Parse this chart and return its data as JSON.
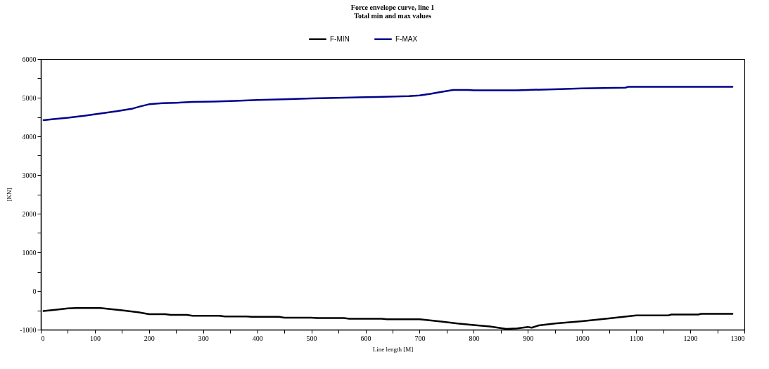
{
  "chart_data": {
    "type": "line",
    "title": "Force envelope curve, line   1",
    "subtitle": "Total min and max values",
    "xlabel": "Line length [M]",
    "ylabel": "[KN]",
    "xlim": [
      0,
      1300
    ],
    "ylim": [
      -1000,
      6000
    ],
    "xticks": [
      0,
      {
        "value": 50,
        "label": null
      },
      100,
      {
        "value": 150,
        "label": null
      },
      200,
      {
        "value": 250,
        "label": null
      },
      300,
      {
        "value": 350,
        "label": null
      },
      400,
      {
        "value": 450,
        "label": null
      },
      500,
      {
        "value": 550,
        "label": null
      },
      600,
      {
        "value": 650,
        "label": null
      },
      700,
      {
        "value": 750,
        "label": null
      },
      800,
      {
        "value": 850,
        "label": null
      },
      900,
      {
        "value": 950,
        "label": null
      },
      1000,
      {
        "value": 1050,
        "label": null
      },
      1100,
      {
        "value": 1150,
        "label": null
      },
      1200,
      {
        "value": 1250,
        "label": null
      },
      1300
    ],
    "yticks": [
      -1000,
      {
        "value": -500,
        "label": null
      },
      0,
      {
        "value": 500,
        "label": null
      },
      1000,
      {
        "value": 1500,
        "label": null
      },
      2000,
      {
        "value": 2500,
        "label": null
      },
      3000,
      {
        "value": 3500,
        "label": null
      },
      4000,
      {
        "value": 4500,
        "label": null
      },
      5000,
      {
        "value": 5500,
        "label": null
      },
      6000
    ],
    "grid": false,
    "legend": "top",
    "marker": "none",
    "line_style": "solid",
    "series": [
      {
        "name": "F-MIN",
        "color": "#000000",
        "x": [
          5,
          30,
          50,
          65,
          110,
          150,
          180,
          200,
          230,
          240,
          270,
          280,
          330,
          340,
          380,
          390,
          440,
          450,
          500,
          510,
          560,
          570,
          630,
          640,
          700,
          740,
          770,
          800,
          830,
          860,
          880,
          900,
          907,
          920,
          950,
          1000,
          1050,
          1100,
          1160,
          1165,
          1215,
          1220,
          1278
        ],
        "values": [
          -520,
          -480,
          -450,
          -440,
          -440,
          -500,
          -550,
          -600,
          -600,
          -620,
          -620,
          -640,
          -640,
          -660,
          -660,
          -670,
          -670,
          -690,
          -690,
          -700,
          -700,
          -720,
          -720,
          -730,
          -730,
          -790,
          -840,
          -880,
          -920,
          -980,
          -970,
          -930,
          -950,
          -890,
          -840,
          -780,
          -710,
          -630,
          -630,
          -610,
          -610,
          -590,
          -590
        ]
      },
      {
        "name": "F-MAX",
        "color": "#00008b",
        "x": [
          5,
          20,
          50,
          80,
          110,
          140,
          170,
          185,
          200,
          225,
          250,
          280,
          320,
          360,
          400,
          450,
          500,
          560,
          620,
          680,
          700,
          720,
          740,
          762,
          790,
          800,
          880,
          900,
          950,
          1000,
          1080,
          1085,
          1278
        ],
        "values": [
          4420,
          4440,
          4480,
          4530,
          4590,
          4650,
          4720,
          4780,
          4830,
          4860,
          4870,
          4890,
          4900,
          4920,
          4940,
          4960,
          4980,
          5000,
          5020,
          5040,
          5060,
          5100,
          5150,
          5200,
          5200,
          5190,
          5190,
          5200,
          5220,
          5240,
          5260,
          5280,
          5280
        ]
      }
    ]
  }
}
